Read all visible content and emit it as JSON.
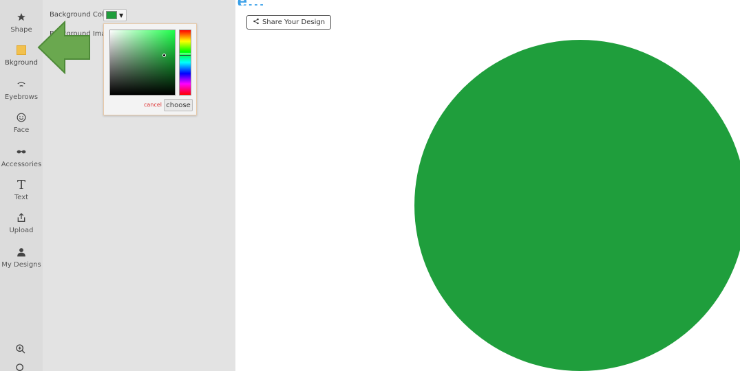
{
  "header": {
    "heading_fragment": "...pe your design style..."
  },
  "sidebar": {
    "items": [
      {
        "label": "Shape",
        "icon": "star-icon"
      },
      {
        "label": "Bkground",
        "icon": "background-icon"
      },
      {
        "label": "Eyebrows",
        "icon": "eyebrow-icon"
      },
      {
        "label": "Face",
        "icon": "smiley-icon"
      },
      {
        "label": "Accessories",
        "icon": "sunglasses-icon"
      },
      {
        "label": "Text",
        "icon": "text-icon"
      },
      {
        "label": "Upload",
        "icon": "upload-icon"
      },
      {
        "label": "My Designs",
        "icon": "user-icon"
      }
    ],
    "zoom_in_icon": "zoom-in-icon",
    "zoom_out_icon": "zoom-out-icon"
  },
  "panel": {
    "background_color_label": "Background Color",
    "background_image_label": "Background Image",
    "selected_color": "#1f9e3c"
  },
  "color_picker": {
    "cancel_label": "cancel",
    "choose_label": "choose",
    "hue_color": "#1dff4a"
  },
  "toolbar": {
    "share_label": "Share Your Design"
  },
  "canvas": {
    "shape": "circle",
    "fill_color": "#1f9e3c"
  },
  "colors": {
    "accent_arrow": "#6aa84f",
    "sidebar_bg": "#dcdcdc",
    "panel_bg": "#e3e3e3"
  }
}
